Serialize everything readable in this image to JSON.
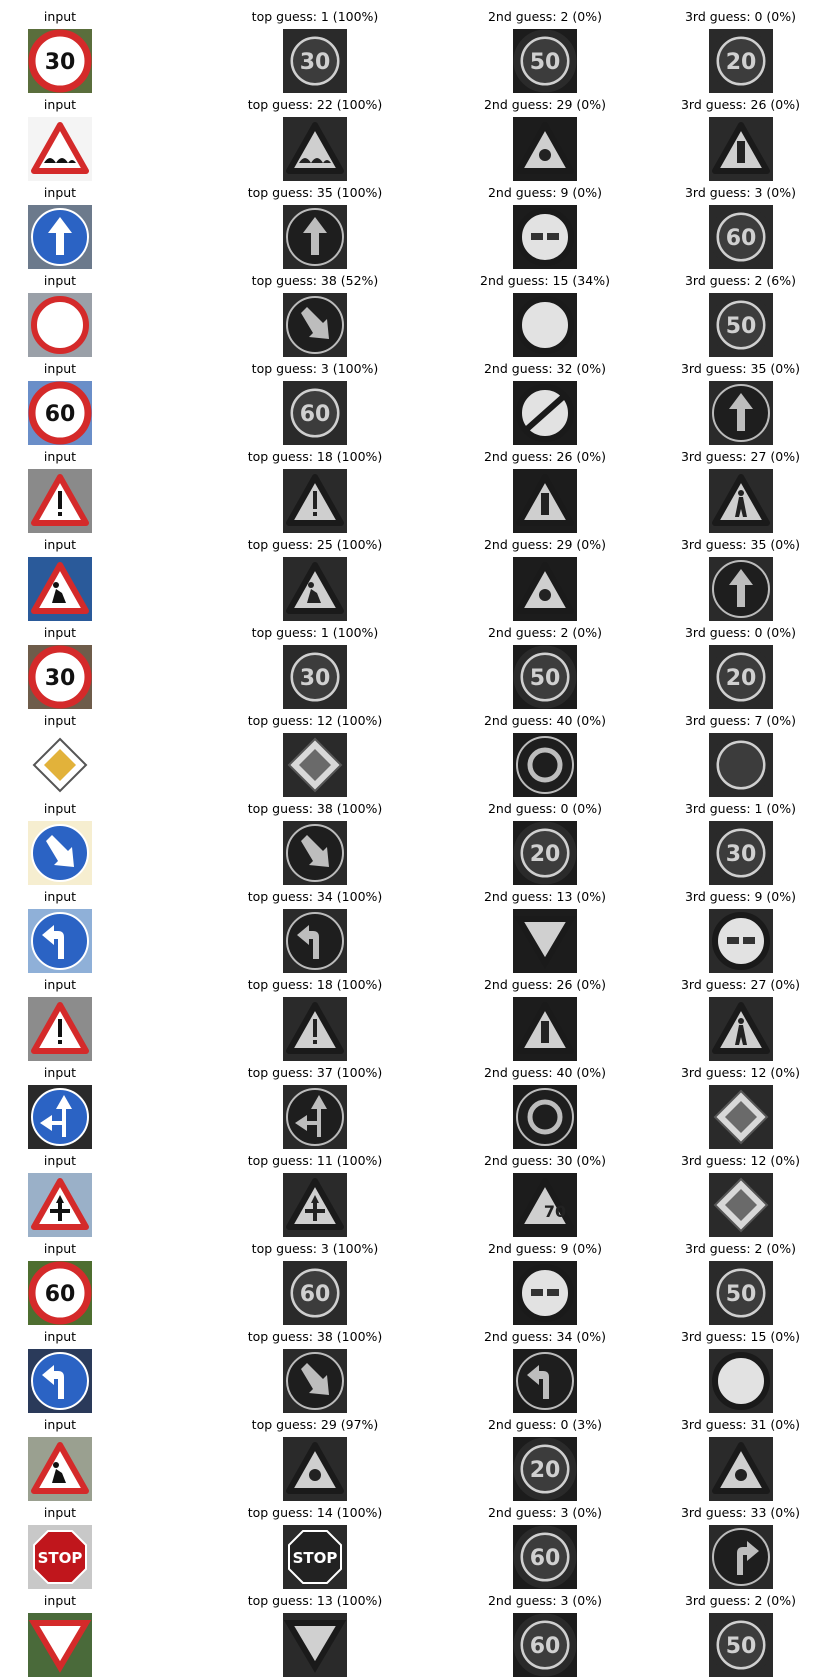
{
  "rows": [
    {
      "input": {
        "caption": "input",
        "image": "speed-limit-30-sign",
        "text": "30"
      },
      "guesses": [
        {
          "caption": "top guess: 1 (100%)",
          "image": "speed-limit-30-sign",
          "text": "30"
        },
        {
          "caption": "2nd guess: 2 (0%)",
          "image": "speed-limit-50-sign",
          "text": "50"
        },
        {
          "caption": "3rd guess: 0 (0%)",
          "image": "speed-limit-20-sign",
          "text": "20"
        }
      ]
    },
    {
      "input": {
        "caption": "input",
        "image": "bumpy-road-sign"
      },
      "guesses": [
        {
          "caption": "top guess: 22 (100%)",
          "image": "bumpy-road-sign"
        },
        {
          "caption": "2nd guess: 29 (0%)",
          "image": "bicycles-crossing-sign"
        },
        {
          "caption": "3rd guess: 26 (0%)",
          "image": "traffic-signals-sign"
        }
      ]
    },
    {
      "input": {
        "caption": "input",
        "image": "ahead-only-sign"
      },
      "guesses": [
        {
          "caption": "top guess: 35 (100%)",
          "image": "ahead-only-sign"
        },
        {
          "caption": "2nd guess: 9 (0%)",
          "image": "no-passing-sign"
        },
        {
          "caption": "3rd guess: 3 (0%)",
          "image": "speed-limit-60-sign",
          "text": "60"
        }
      ]
    },
    {
      "input": {
        "caption": "input",
        "image": "no-vehicles-sign"
      },
      "guesses": [
        {
          "caption": "top guess: 38 (52%)",
          "image": "keep-right-sign"
        },
        {
          "caption": "2nd guess: 15 (34%)",
          "image": "no-vehicles-sign"
        },
        {
          "caption": "3rd guess: 2 (6%)",
          "image": "speed-limit-50-sign",
          "text": "50"
        }
      ]
    },
    {
      "input": {
        "caption": "input",
        "image": "speed-limit-60-sign",
        "text": "60"
      },
      "guesses": [
        {
          "caption": "top guess: 3 (100%)",
          "image": "speed-limit-60-sign",
          "text": "60"
        },
        {
          "caption": "2nd guess: 32 (0%)",
          "image": "end-of-limits-sign"
        },
        {
          "caption": "3rd guess: 35 (0%)",
          "image": "ahead-only-sign"
        }
      ]
    },
    {
      "input": {
        "caption": "input",
        "image": "general-caution-sign"
      },
      "guesses": [
        {
          "caption": "top guess: 18 (100%)",
          "image": "general-caution-sign"
        },
        {
          "caption": "2nd guess: 26 (0%)",
          "image": "traffic-signals-sign"
        },
        {
          "caption": "3rd guess: 27 (0%)",
          "image": "pedestrians-sign"
        }
      ]
    },
    {
      "input": {
        "caption": "input",
        "image": "road-work-sign"
      },
      "guesses": [
        {
          "caption": "top guess: 25 (100%)",
          "image": "road-work-sign"
        },
        {
          "caption": "2nd guess: 29 (0%)",
          "image": "bicycles-crossing-sign"
        },
        {
          "caption": "3rd guess: 35 (0%)",
          "image": "ahead-only-sign"
        }
      ]
    },
    {
      "input": {
        "caption": "input",
        "image": "speed-limit-30-sign",
        "text": "30"
      },
      "guesses": [
        {
          "caption": "top guess: 1 (100%)",
          "image": "speed-limit-30-sign",
          "text": "30"
        },
        {
          "caption": "2nd guess: 2 (0%)",
          "image": "speed-limit-50-sign",
          "text": "50"
        },
        {
          "caption": "3rd guess: 0 (0%)",
          "image": "speed-limit-20-sign",
          "text": "20"
        }
      ]
    },
    {
      "input": {
        "caption": "input",
        "image": "priority-road-sign"
      },
      "guesses": [
        {
          "caption": "top guess: 12 (100%)",
          "image": "priority-road-sign"
        },
        {
          "caption": "2nd guess: 40 (0%)",
          "image": "roundabout-sign"
        },
        {
          "caption": "3rd guess: 7 (0%)",
          "image": "speed-limit-100-sign"
        }
      ]
    },
    {
      "input": {
        "caption": "input",
        "image": "keep-right-sign"
      },
      "guesses": [
        {
          "caption": "top guess: 38 (100%)",
          "image": "keep-right-sign"
        },
        {
          "caption": "2nd guess: 0 (0%)",
          "image": "speed-limit-20-sign",
          "text": "20"
        },
        {
          "caption": "3rd guess: 1 (0%)",
          "image": "speed-limit-30-sign",
          "text": "30"
        }
      ]
    },
    {
      "input": {
        "caption": "input",
        "image": "turn-left-ahead-sign"
      },
      "guesses": [
        {
          "caption": "top guess: 34 (100%)",
          "image": "turn-left-ahead-sign"
        },
        {
          "caption": "2nd guess: 13 (0%)",
          "image": "yield-sign"
        },
        {
          "caption": "3rd guess: 9 (0%)",
          "image": "no-passing-sign"
        }
      ]
    },
    {
      "input": {
        "caption": "input",
        "image": "general-caution-sign"
      },
      "guesses": [
        {
          "caption": "top guess: 18 (100%)",
          "image": "general-caution-sign"
        },
        {
          "caption": "2nd guess: 26 (0%)",
          "image": "traffic-signals-sign"
        },
        {
          "caption": "3rd guess: 27 (0%)",
          "image": "pedestrians-sign"
        }
      ]
    },
    {
      "input": {
        "caption": "input",
        "image": "go-straight-or-left-sign"
      },
      "guesses": [
        {
          "caption": "top guess: 37 (100%)",
          "image": "go-straight-or-left-sign"
        },
        {
          "caption": "2nd guess: 40 (0%)",
          "image": "roundabout-sign"
        },
        {
          "caption": "3rd guess: 12 (0%)",
          "image": "priority-road-sign"
        }
      ]
    },
    {
      "input": {
        "caption": "input",
        "image": "right-of-way-sign"
      },
      "guesses": [
        {
          "caption": "top guess: 11 (100%)",
          "image": "right-of-way-sign"
        },
        {
          "caption": "2nd guess: 30 (0%)",
          "image": "beware-of-ice-sign",
          "text": "70"
        },
        {
          "caption": "3rd guess: 12 (0%)",
          "image": "priority-road-sign"
        }
      ]
    },
    {
      "input": {
        "caption": "input",
        "image": "speed-limit-60-sign",
        "text": "60"
      },
      "guesses": [
        {
          "caption": "top guess: 3 (100%)",
          "image": "speed-limit-60-sign",
          "text": "60"
        },
        {
          "caption": "2nd guess: 9 (0%)",
          "image": "no-passing-sign"
        },
        {
          "caption": "3rd guess: 2 (0%)",
          "image": "speed-limit-50-sign",
          "text": "50"
        }
      ]
    },
    {
      "input": {
        "caption": "input",
        "image": "keep-left-sign"
      },
      "guesses": [
        {
          "caption": "top guess: 38 (100%)",
          "image": "keep-right-sign"
        },
        {
          "caption": "2nd guess: 34 (0%)",
          "image": "turn-left-ahead-sign"
        },
        {
          "caption": "3rd guess: 15 (0%)",
          "image": "no-vehicles-sign"
        }
      ]
    },
    {
      "input": {
        "caption": "input",
        "image": "road-work-sign"
      },
      "guesses": [
        {
          "caption": "top guess: 29 (97%)",
          "image": "bicycles-crossing-sign"
        },
        {
          "caption": "2nd guess: 0 (3%)",
          "image": "speed-limit-20-sign",
          "text": "20"
        },
        {
          "caption": "3rd guess: 31 (0%)",
          "image": "wild-animals-crossing-sign"
        }
      ]
    },
    {
      "input": {
        "caption": "input",
        "image": "stop-sign",
        "text": "STOP"
      },
      "guesses": [
        {
          "caption": "top guess: 14 (100%)",
          "image": "stop-sign",
          "text": "STOP"
        },
        {
          "caption": "2nd guess: 3 (0%)",
          "image": "speed-limit-60-sign",
          "text": "60"
        },
        {
          "caption": "3rd guess: 33 (0%)",
          "image": "turn-right-ahead-sign"
        }
      ]
    },
    {
      "input": {
        "caption": "input",
        "image": "yield-sign"
      },
      "guesses": [
        {
          "caption": "top guess: 13 (100%)",
          "image": "yield-sign"
        },
        {
          "caption": "2nd guess: 3 (0%)",
          "image": "speed-limit-60-sign",
          "text": "60"
        },
        {
          "caption": "3rd guess: 2 (0%)",
          "image": "speed-limit-50-sign",
          "text": "50"
        }
      ]
    }
  ]
}
